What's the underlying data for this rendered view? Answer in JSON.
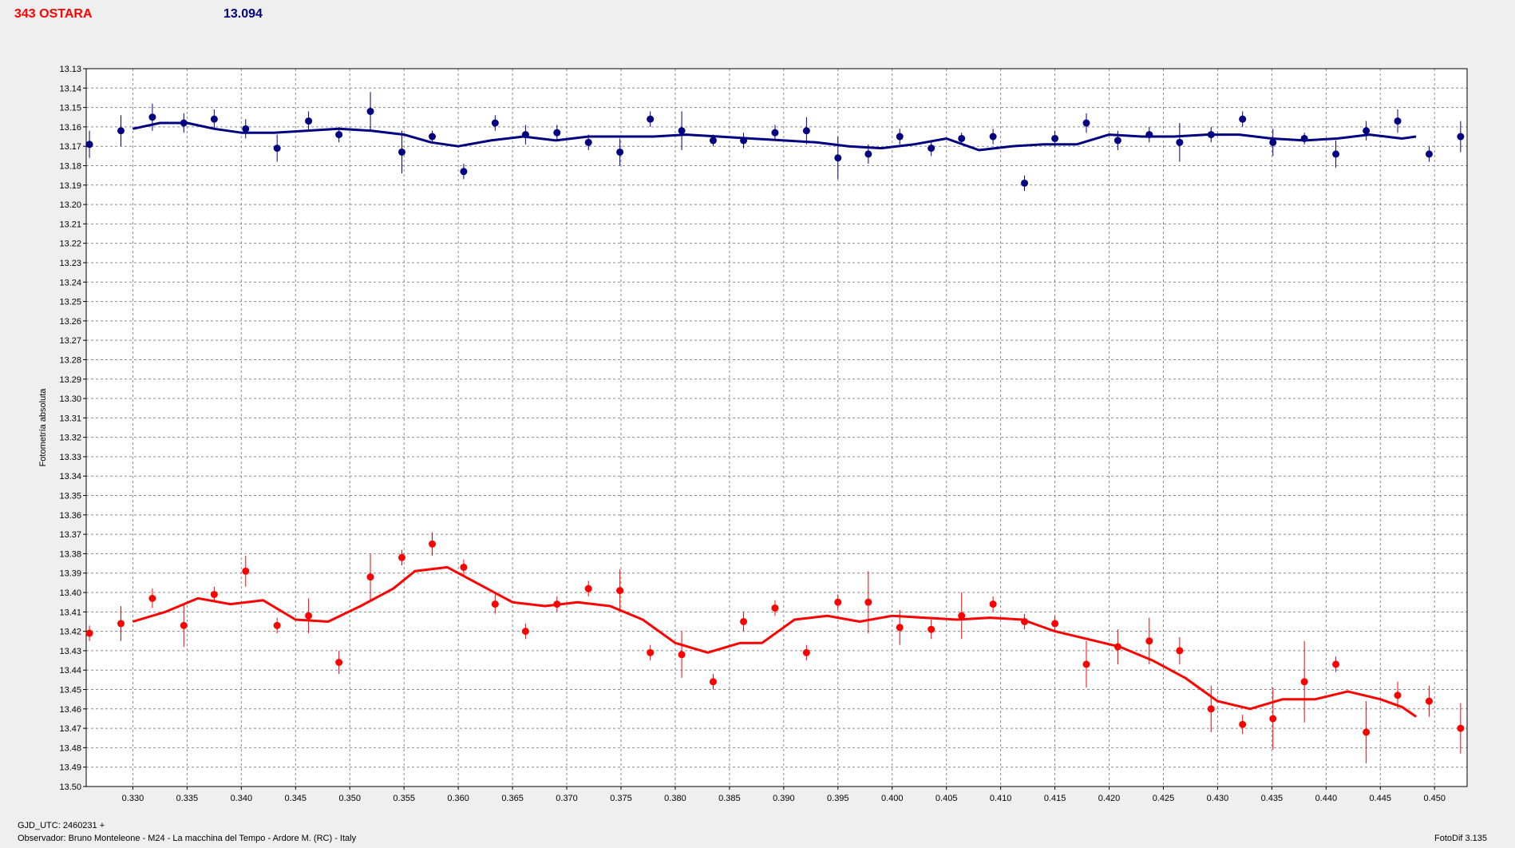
{
  "header": {
    "title": "343 OSTARA",
    "value": "13.094"
  },
  "footer": {
    "gjd": "GJD_UTC: 2460231 +",
    "observer": "Observador: Bruno Monteleone - M24 - La macchina del Tempo - Ardore M. (RC) - Italy",
    "software": "FotoDif 3.135"
  },
  "colors": {
    "background": "#efefef",
    "plot_background": "#ffffff",
    "blue_series": "#000080",
    "red_series": "#ff0000",
    "grid": "#8a8a8a"
  },
  "chart_data": {
    "type": "scatter",
    "ylabel": "Fotometría absoluta",
    "xlabel": "",
    "xlim": [
      0.3257,
      0.453
    ],
    "ylim": [
      13.13,
      13.5
    ],
    "y_inverted": true,
    "grid": true,
    "x_ticks": [
      0.33,
      0.335,
      0.34,
      0.345,
      0.35,
      0.355,
      0.36,
      0.365,
      0.37,
      0.375,
      0.38,
      0.385,
      0.39,
      0.395,
      0.4,
      0.405,
      0.41,
      0.415,
      0.42,
      0.425,
      0.43,
      0.435,
      0.44,
      0.445,
      0.45
    ],
    "x_tick_labels": [
      "0.330",
      "0.335",
      "0.340",
      "0.345",
      "0.350",
      "0.355",
      "0.360",
      "0.365",
      "0.370",
      "0.375",
      "0.380",
      "0.385",
      "0.390",
      "0.395",
      "0.400",
      "0.405",
      "0.410",
      "0.415",
      "0.420",
      "0.425",
      "0.430",
      "0.435",
      "0.440",
      "0.445",
      "0.450"
    ],
    "y_ticks": [
      13.13,
      13.14,
      13.15,
      13.16,
      13.17,
      13.18,
      13.19,
      13.2,
      13.21,
      13.22,
      13.23,
      13.24,
      13.25,
      13.26,
      13.27,
      13.28,
      13.29,
      13.3,
      13.31,
      13.32,
      13.33,
      13.34,
      13.35,
      13.36,
      13.37,
      13.38,
      13.39,
      13.4,
      13.41,
      13.42,
      13.43,
      13.44,
      13.45,
      13.46,
      13.47,
      13.48,
      13.49,
      13.5
    ],
    "y_tick_labels": [
      "13.13",
      "13.14",
      "13.15",
      "13.16",
      "13.17",
      "13.18",
      "13.19",
      "13.20",
      "13.21",
      "13.22",
      "13.23",
      "13.24",
      "13.25",
      "13.26",
      "13.27",
      "13.28",
      "13.29",
      "13.30",
      "13.31",
      "13.32",
      "13.33",
      "13.34",
      "13.35",
      "13.36",
      "13.37",
      "13.38",
      "13.39",
      "13.40",
      "13.41",
      "13.42",
      "13.43",
      "13.44",
      "13.45",
      "13.46",
      "13.47",
      "13.48",
      "13.49",
      "13.50"
    ],
    "series": [
      {
        "color": "#000080",
        "x": [
          0.326,
          0.3289,
          0.3318,
          0.3347,
          0.3375,
          0.3404,
          0.3433,
          0.3462,
          0.349,
          0.3519,
          0.3548,
          0.3576,
          0.3605,
          0.3634,
          0.3662,
          0.3691,
          0.372,
          0.3749,
          0.3777,
          0.3806,
          0.3835,
          0.3863,
          0.3892,
          0.3921,
          0.395,
          0.3978,
          0.4007,
          0.4036,
          0.4064,
          0.4093,
          0.4122,
          0.415,
          0.4179,
          0.4208,
          0.4237,
          0.4265,
          0.4294,
          0.4323,
          0.4351,
          0.438,
          0.4409,
          0.4437,
          0.4466,
          0.4495,
          0.4524
        ],
        "y": [
          13.169,
          13.162,
          13.155,
          13.158,
          13.156,
          13.161,
          13.171,
          13.157,
          13.164,
          13.152,
          13.173,
          13.165,
          13.183,
          13.158,
          13.164,
          13.163,
          13.168,
          13.173,
          13.156,
          13.162,
          13.167,
          13.167,
          13.163,
          13.162,
          13.176,
          13.174,
          13.165,
          13.171,
          13.166,
          13.165,
          13.189,
          13.166,
          13.158,
          13.167,
          13.164,
          13.168,
          13.164,
          13.156,
          13.168,
          13.166,
          13.174,
          13.162,
          13.157,
          13.174,
          13.165
        ],
        "err": [
          0.007,
          0.008,
          0.007,
          0.005,
          0.005,
          0.005,
          0.007,
          0.005,
          0.004,
          0.01,
          0.011,
          0.003,
          0.004,
          0.004,
          0.005,
          0.004,
          0.004,
          0.007,
          0.004,
          0.01,
          0.003,
          0.004,
          0.004,
          0.007,
          0.011,
          0.005,
          0.004,
          0.004,
          0.003,
          0.004,
          0.004,
          0.004,
          0.005,
          0.005,
          0.004,
          0.01,
          0.004,
          0.004,
          0.007,
          0.003,
          0.007,
          0.005,
          0.006,
          0.004,
          0.008
        ],
        "fit_x": [
          0.33,
          0.3325,
          0.335,
          0.3375,
          0.34,
          0.343,
          0.346,
          0.349,
          0.352,
          0.355,
          0.3575,
          0.36,
          0.363,
          0.366,
          0.369,
          0.372,
          0.375,
          0.378,
          0.381,
          0.384,
          0.387,
          0.39,
          0.393,
          0.396,
          0.399,
          0.402,
          0.405,
          0.408,
          0.411,
          0.414,
          0.417,
          0.42,
          0.423,
          0.426,
          0.429,
          0.432,
          0.435,
          0.438,
          0.441,
          0.444,
          0.447,
          0.4483
        ],
        "fit_y": [
          13.161,
          13.158,
          13.158,
          13.161,
          13.163,
          13.163,
          13.162,
          13.161,
          13.162,
          13.164,
          13.168,
          13.17,
          13.167,
          13.165,
          13.167,
          13.165,
          13.165,
          13.165,
          13.164,
          13.165,
          13.166,
          13.167,
          13.168,
          13.17,
          13.171,
          13.169,
          13.166,
          13.172,
          13.17,
          13.169,
          13.169,
          13.164,
          13.165,
          13.165,
          13.164,
          13.164,
          13.166,
          13.167,
          13.166,
          13.164,
          13.166,
          13.165
        ]
      },
      {
        "color": "#ff0000",
        "x": [
          0.326,
          0.3289,
          0.3318,
          0.3347,
          0.3375,
          0.3404,
          0.3433,
          0.3462,
          0.349,
          0.3519,
          0.3548,
          0.3576,
          0.3605,
          0.3634,
          0.3662,
          0.3691,
          0.372,
          0.3749,
          0.3777,
          0.3806,
          0.3835,
          0.3863,
          0.3892,
          0.3921,
          0.395,
          0.3978,
          0.4007,
          0.4036,
          0.4064,
          0.4093,
          0.4122,
          0.415,
          0.4179,
          0.4208,
          0.4237,
          0.4265,
          0.4294,
          0.4323,
          0.4351,
          0.438,
          0.4409,
          0.4437,
          0.4466,
          0.4495,
          0.4524
        ],
        "y": [
          13.421,
          13.416,
          13.403,
          13.417,
          13.401,
          13.389,
          13.417,
          13.412,
          13.436,
          13.392,
          13.382,
          13.375,
          13.387,
          13.406,
          13.42,
          13.406,
          13.398,
          13.399,
          13.431,
          13.432,
          13.446,
          13.415,
          13.408,
          13.431,
          13.405,
          13.405,
          13.418,
          13.419,
          13.412,
          13.406,
          13.415,
          13.416,
          13.437,
          13.428,
          13.425,
          13.43,
          13.46,
          13.468,
          13.465,
          13.446,
          13.437,
          13.472,
          13.453,
          13.456,
          13.47
        ],
        "err": [
          0.004,
          0.009,
          0.005,
          0.011,
          0.004,
          0.008,
          0.004,
          0.009,
          0.006,
          0.012,
          0.004,
          0.006,
          0.004,
          0.005,
          0.004,
          0.004,
          0.004,
          0.011,
          0.004,
          0.012,
          0.004,
          0.005,
          0.004,
          0.004,
          0.004,
          0.016,
          0.009,
          0.005,
          0.012,
          0.004,
          0.004,
          0.004,
          0.012,
          0.009,
          0.012,
          0.007,
          0.012,
          0.005,
          0.016,
          0.021,
          0.004,
          0.016,
          0.007,
          0.008,
          0.013
        ],
        "fit_x": [
          0.33,
          0.333,
          0.336,
          0.339,
          0.342,
          0.345,
          0.348,
          0.351,
          0.354,
          0.356,
          0.359,
          0.362,
          0.365,
          0.368,
          0.371,
          0.374,
          0.377,
          0.38,
          0.383,
          0.386,
          0.388,
          0.391,
          0.394,
          0.397,
          0.4,
          0.403,
          0.406,
          0.409,
          0.412,
          0.415,
          0.418,
          0.421,
          0.424,
          0.427,
          0.43,
          0.433,
          0.436,
          0.439,
          0.442,
          0.445,
          0.447,
          0.4483
        ],
        "fit_y": [
          13.415,
          13.41,
          13.403,
          13.406,
          13.404,
          13.414,
          13.415,
          13.407,
          13.398,
          13.389,
          13.387,
          13.396,
          13.405,
          13.407,
          13.405,
          13.407,
          13.414,
          13.426,
          13.431,
          13.426,
          13.426,
          13.414,
          13.412,
          13.415,
          13.412,
          13.413,
          13.414,
          13.413,
          13.414,
          13.42,
          13.424,
          13.428,
          13.435,
          13.444,
          13.456,
          13.46,
          13.455,
          13.455,
          13.451,
          13.455,
          13.459,
          13.464
        ]
      }
    ]
  }
}
